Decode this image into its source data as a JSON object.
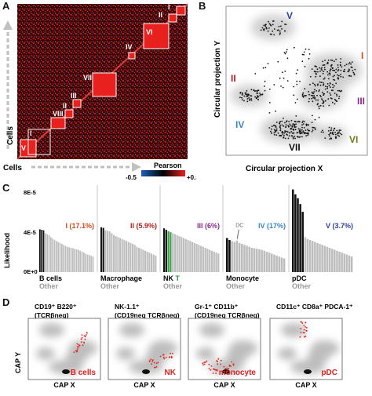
{
  "panels": {
    "A": "A",
    "B": "B",
    "C": "C",
    "D": "D"
  },
  "panelA": {
    "ylabel": "Cells",
    "xlabel": "Cells",
    "colorbar_title": "Pearson",
    "colorbar_min": "-0.5",
    "colorbar_max": "+0.5",
    "clusters": [
      "I",
      "II",
      "III",
      "IV",
      "V",
      "VI",
      "VII",
      "VIII"
    ],
    "colors": {
      "high": "#e8211f",
      "mid": "#5a0c0c",
      "neg": "#1c5fb8",
      "bg": "#1a0505"
    }
  },
  "panelB": {
    "ylabel": "Circular projection Y",
    "xlabel": "Circular projection X",
    "labels": [
      {
        "text": "I",
        "color": "#d24a1e"
      },
      {
        "text": "II",
        "color": "#b11f1f"
      },
      {
        "text": "III",
        "color": "#8a2c8e"
      },
      {
        "text": "IV",
        "color": "#3a86c8"
      },
      {
        "text": "V",
        "color": "#2b3f9e"
      },
      {
        "text": "VI",
        "color": "#6b7a1a"
      },
      {
        "text": "VII",
        "color": "#111111"
      }
    ]
  },
  "panelC": {
    "ylabel": "Likelihood",
    "yticks": [
      "8E-5",
      "4E-5",
      "0E+0"
    ],
    "dc_label": "DC",
    "groups": [
      {
        "label": "B cells",
        "sub": "Other",
        "title": "I (17.1%)",
        "title_color": "#d24a1e",
        "black": 3,
        "green": 0,
        "values": [
          4.4,
          4.35,
          4.3,
          4.0,
          3.9,
          3.8,
          3.6,
          3.45,
          3.3,
          3.2,
          3.1,
          3.0,
          2.9,
          2.8,
          2.7,
          2.6,
          2.55,
          2.5,
          2.45,
          2.4,
          2.35,
          2.3,
          2.2,
          2.1,
          2.0,
          1.9,
          1.8,
          1.75,
          1.7,
          1.6
        ]
      },
      {
        "label": "Macrophage",
        "sub": "Other",
        "title": "II (5.9%)",
        "title_color": "#b11f1f",
        "black": 2,
        "green": 0,
        "values": [
          4.6,
          4.55,
          4.3,
          4.25,
          4.2,
          4.0,
          3.8,
          3.7,
          3.6,
          3.5,
          3.4,
          3.3,
          3.2,
          3.1,
          3.0,
          2.9,
          2.8,
          2.6,
          2.5,
          2.4,
          2.3,
          2.2,
          2.1,
          2.0,
          1.9,
          1.8,
          1.7
        ]
      },
      {
        "label": "NK",
        "label2": "T",
        "label2_color": "#2d9a3b",
        "sub": "Other",
        "title": "III (6%)",
        "title_color": "#8a2c8e",
        "black": 2,
        "green": 2,
        "values": [
          4.5,
          4.35,
          4.2,
          4.1,
          4.0,
          3.9,
          3.8,
          3.7,
          3.6,
          3.5,
          3.4,
          3.3,
          3.2,
          3.1,
          3.0,
          2.9,
          2.8,
          2.7,
          2.6,
          2.5,
          2.4,
          2.3,
          2.2,
          2.1,
          2.0,
          1.9
        ]
      },
      {
        "label": "Monocyte",
        "sub": "Other",
        "title": "IV (17%)",
        "title_color": "#3a86c8",
        "black": 2,
        "green": 0,
        "dc_index": 4,
        "values": [
          3.5,
          3.3,
          3.2,
          3.1,
          3.25,
          3.0,
          2.9,
          2.8,
          2.7,
          2.6,
          2.5,
          2.45,
          2.4,
          2.35,
          2.3,
          2.2,
          2.1,
          2.0,
          1.9,
          1.8,
          1.7,
          1.6,
          1.5,
          1.4
        ]
      },
      {
        "label": "pDC",
        "sub": "Other",
        "title": "V (3.7%)",
        "title_color": "#2b3f9e",
        "black": 5,
        "green": 0,
        "values": [
          8.5,
          8.0,
          7.6,
          7.0,
          6.2,
          3.6,
          3.4,
          3.3,
          3.2,
          3.1,
          3.0,
          2.9,
          2.8,
          2.7,
          2.6,
          2.5,
          2.4,
          2.3,
          2.2,
          2.1,
          2.0,
          1.9,
          1.8,
          1.7,
          1.6
        ]
      }
    ]
  },
  "panelD": {
    "ylabel": "CAP Y",
    "xlabel": "CAP X",
    "items": [
      {
        "header1": "CD19⁺ B220⁺",
        "header2": "(TCRβneg)",
        "label": "B cells"
      },
      {
        "header1": "NK-1.1⁺",
        "header2": "(CD19neg TCRβneg)",
        "label": "NK"
      },
      {
        "header1": "Gr-1⁺ CD11b⁺",
        "header2": "(CD19neg TCRβneg)",
        "label": "monocyte"
      },
      {
        "header1": "CD11c⁺ CD8a⁺ PDCA-1⁺",
        "header2": "",
        "label": "pDC"
      }
    ]
  }
}
